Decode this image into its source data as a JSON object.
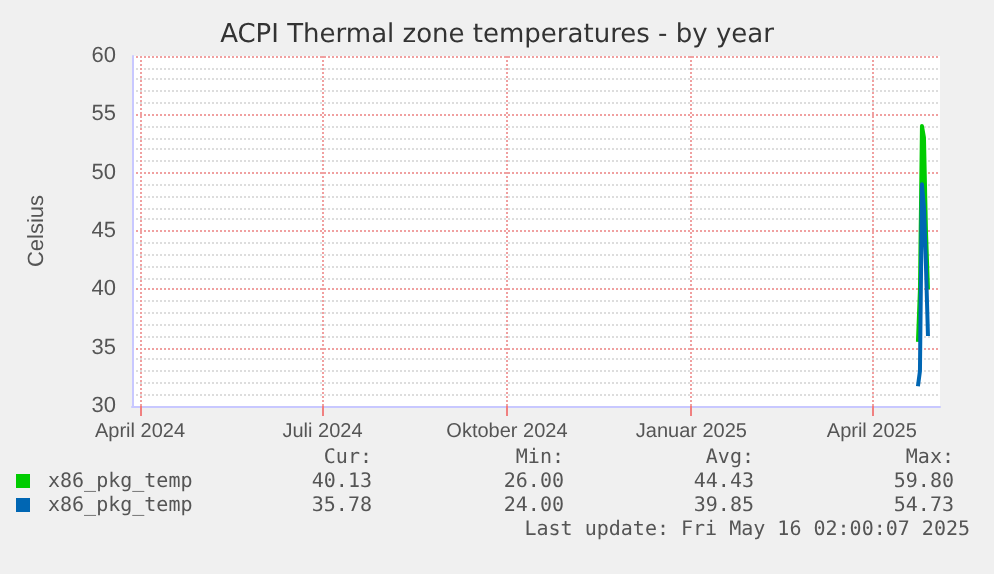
{
  "chart_data": {
    "type": "line",
    "title": "ACPI Thermal zone temperatures - by year",
    "ylabel": "Celsius",
    "xlim": [
      "2024-03-28",
      "2025-05-05"
    ],
    "xticks": [
      {
        "value": "2024-04-01",
        "label": "April 2024"
      },
      {
        "value": "2024-07-01",
        "label": "Juli 2024"
      },
      {
        "value": "2024-10-01",
        "label": "Oktober 2024"
      },
      {
        "value": "2025-01-01",
        "label": "Januar 2025"
      },
      {
        "value": "2025-04-01",
        "label": "April 2025"
      }
    ],
    "ylim": [
      30,
      60
    ],
    "yticks": [
      30,
      35,
      40,
      45,
      50,
      55,
      60
    ],
    "grid": true,
    "legend": "bottom",
    "series": [
      {
        "name": "x86_pkg_temp",
        "color": "#00cc00",
        "x": [
          "2025-04-24",
          "2025-04-25",
          "2025-04-26",
          "2025-04-27",
          "2025-04-28",
          "2025-04-29"
        ],
        "values": [
          35.5,
          40,
          54,
          53,
          45,
          40
        ]
      },
      {
        "name": "x86_pkg_temp",
        "color": "#0066b3",
        "x": [
          "2025-04-24",
          "2025-04-25",
          "2025-04-26",
          "2025-04-27",
          "2025-04-28",
          "2025-04-29"
        ],
        "values": [
          31.7,
          33,
          49,
          47,
          42,
          36
        ]
      }
    ],
    "annotations": [
      "Cur:",
      "Min:",
      "Avg:",
      "Max:",
      "40.13",
      "26.00",
      "44.43",
      "59.80",
      "35.78",
      "24.00",
      "39.85",
      "54.73",
      "Last update: Fri May 16 02:00:07 2025"
    ]
  }
}
